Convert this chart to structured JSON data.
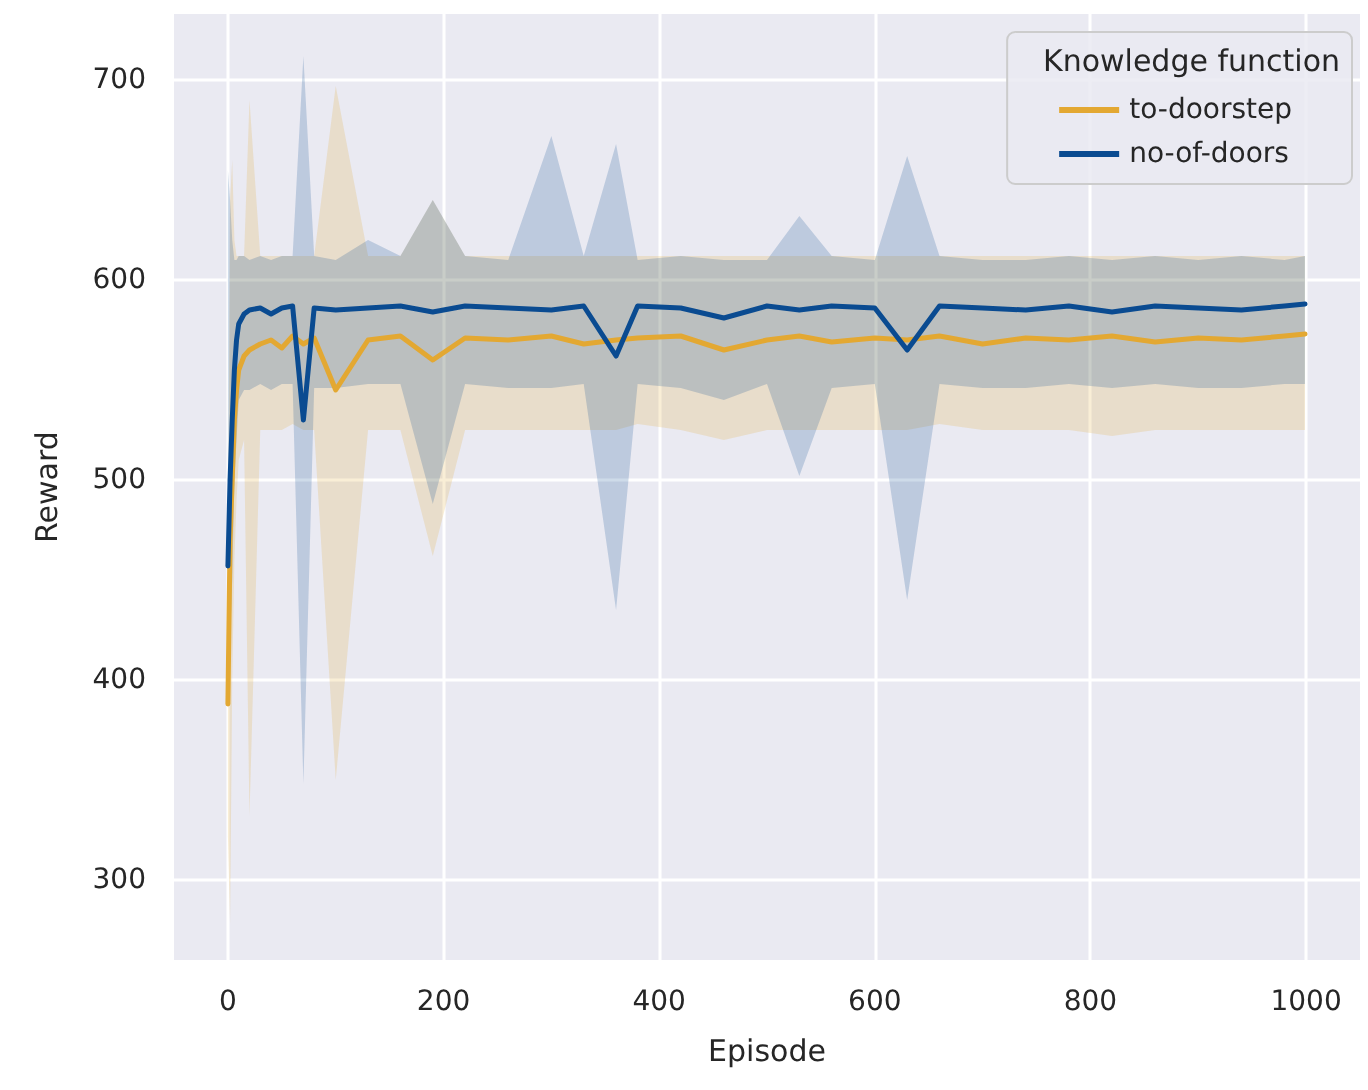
{
  "chart_data": {
    "type": "line",
    "xlabel": "Episode",
    "ylabel": "Reward",
    "legend_title": "Knowledge function",
    "x": [
      0,
      2,
      4,
      6,
      8,
      10,
      15,
      20,
      30,
      40,
      50,
      60,
      70,
      80,
      100,
      130,
      160,
      190,
      220,
      260,
      300,
      330,
      360,
      380,
      420,
      460,
      500,
      530,
      560,
      600,
      630,
      660,
      700,
      740,
      780,
      820,
      860,
      900,
      940,
      980,
      999
    ],
    "series": [
      {
        "name": "to-doorstep",
        "color": "#e3a832",
        "values": [
          388,
          470,
          500,
          530,
          545,
          555,
          562,
          565,
          568,
          570,
          566,
          572,
          568,
          571,
          545,
          570,
          572,
          560,
          571,
          570,
          572,
          568,
          570,
          571,
          572,
          565,
          570,
          572,
          569,
          571,
          570,
          572,
          568,
          571,
          570,
          572,
          569,
          571,
          570,
          572,
          573
        ],
        "lower": [
          322,
          278,
          400,
          460,
          490,
          510,
          520,
          332,
          525,
          525,
          525,
          528,
          525,
          525,
          350,
          525,
          525,
          462,
          525,
          525,
          525,
          525,
          525,
          528,
          525,
          520,
          525,
          525,
          525,
          525,
          525,
          528,
          525,
          525,
          525,
          522,
          525,
          525,
          525,
          525,
          525
        ],
        "upper": [
          460,
          640,
          660,
          620,
          612,
          612,
          612,
          690,
          612,
          612,
          612,
          612,
          612,
          612,
          697,
          612,
          612,
          640,
          612,
          612,
          612,
          612,
          612,
          612,
          612,
          612,
          612,
          612,
          612,
          612,
          612,
          612,
          612,
          612,
          612,
          612,
          612,
          612,
          612,
          612,
          612
        ]
      },
      {
        "name": "no-of-doors",
        "color": "#0a4b91",
        "values": [
          457,
          500,
          530,
          555,
          570,
          578,
          583,
          585,
          586,
          583,
          586,
          587,
          530,
          586,
          585,
          586,
          587,
          584,
          587,
          586,
          585,
          587,
          562,
          587,
          586,
          581,
          587,
          585,
          587,
          586,
          565,
          587,
          586,
          585,
          587,
          584,
          587,
          586,
          585,
          587,
          588
        ],
        "lower": [
          390,
          420,
          450,
          500,
          520,
          540,
          545,
          545,
          548,
          545,
          548,
          548,
          348,
          546,
          546,
          548,
          548,
          488,
          548,
          546,
          546,
          548,
          435,
          548,
          546,
          540,
          548,
          502,
          546,
          548,
          440,
          548,
          546,
          546,
          548,
          546,
          548,
          546,
          546,
          548,
          548
        ],
        "upper": [
          655,
          640,
          620,
          610,
          610,
          612,
          612,
          610,
          612,
          610,
          612,
          612,
          712,
          612,
          610,
          620,
          612,
          640,
          612,
          610,
          672,
          612,
          668,
          610,
          612,
          610,
          610,
          632,
          612,
          610,
          662,
          612,
          610,
          610,
          612,
          610,
          612,
          610,
          612,
          610,
          612
        ]
      }
    ],
    "xlim": [
      -50,
      1050
    ],
    "xticks": [
      0,
      200,
      400,
      600,
      800,
      1000
    ],
    "ylim": [
      260,
      733
    ],
    "yticks": [
      300,
      400,
      500,
      600,
      700
    ],
    "grid": true,
    "legend": "top right",
    "line_style": "solid"
  }
}
